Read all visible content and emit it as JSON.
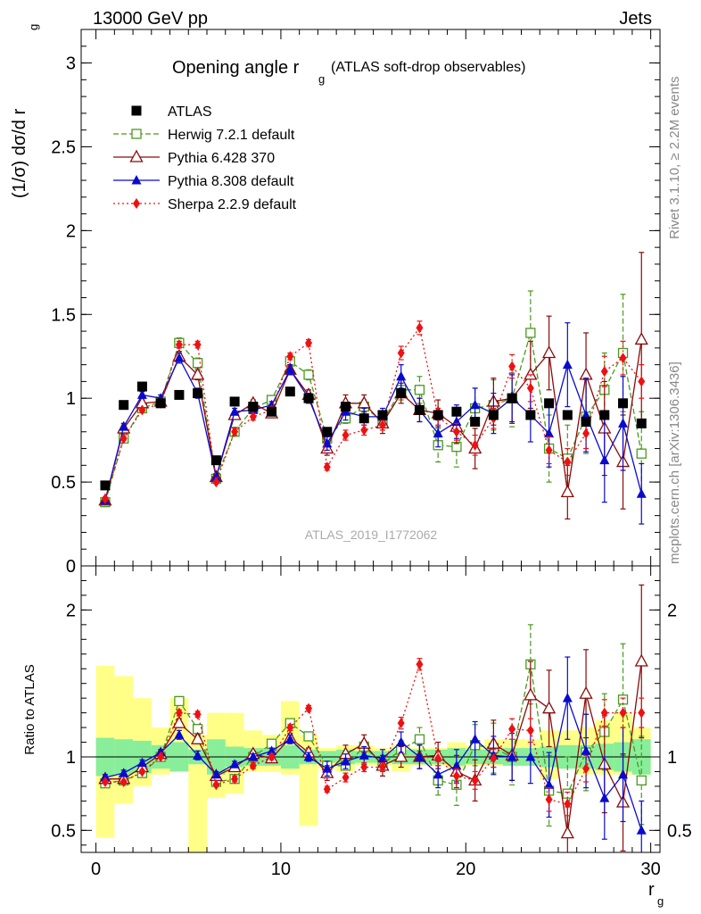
{
  "header": {
    "left": "13000 GeV pp",
    "right": "Jets",
    "watermark": "ATLAS_2019_I1772062",
    "side_top": "Rivet 3.1.10, ≥ 2.2M events",
    "side_bottom": "mcplots.cern.ch [arXiv:1306.3436]"
  },
  "chart_data": [
    {
      "type": "scatter",
      "title": "Opening angle r",
      "title_sub": "g",
      "title_tail": "(ATLAS soft-drop observables)",
      "ylabel": "(1/σ) dσ/d r",
      "ylabel_sub": "g",
      "xlim": [
        -0.8,
        30.5
      ],
      "ylim": [
        0,
        3.2
      ],
      "x_ticks": [
        0,
        10,
        20,
        30
      ],
      "y_ticks": [
        {
          "v": 0,
          "label": "0"
        },
        {
          "v": 0.5,
          "label": "0.5"
        },
        {
          "v": 1,
          "label": "1"
        },
        {
          "v": 1.5,
          "label": "1.5"
        },
        {
          "v": 2,
          "label": "2"
        },
        {
          "v": 2.5,
          "label": "2.5"
        },
        {
          "v": 3,
          "label": "3"
        }
      ],
      "legend_position": "top-left",
      "x": [
        0.5,
        1.5,
        2.5,
        3.5,
        4.5,
        5.5,
        6.5,
        7.5,
        8.5,
        9.5,
        10.5,
        11.5,
        12.5,
        13.5,
        14.5,
        15.5,
        16.5,
        17.5,
        18.5,
        19.5,
        20.5,
        21.5,
        22.5,
        23.5,
        24.5,
        25.5,
        26.5,
        27.5,
        28.5,
        29.5
      ],
      "series": [
        {
          "name": "ATLAS",
          "color": "#000000",
          "marker": "square-filled",
          "line": "none",
          "values": [
            0.48,
            0.96,
            1.07,
            0.97,
            1.02,
            1.03,
            0.63,
            0.98,
            0.95,
            0.92,
            1.04,
            1.0,
            0.8,
            0.95,
            0.88,
            0.9,
            1.03,
            0.93,
            0.9,
            0.92,
            0.86,
            0.9,
            1.0,
            0.9,
            0.97,
            0.9,
            0.86,
            0.9,
            0.97,
            0.85
          ]
        },
        {
          "name": "Herwig 7.2.1 default",
          "color": "#4a9a1e",
          "marker": "square-open",
          "line": "dashed",
          "values": [
            0.38,
            0.76,
            0.94,
            0.98,
            1.33,
            1.21,
            0.52,
            0.8,
            0.94,
            0.99,
            1.22,
            1.14,
            0.76,
            0.88,
            0.95,
            0.86,
            1.05,
            1.05,
            0.72,
            0.71,
            0.94,
            0.96,
            1.0,
            1.39,
            0.7,
            0.64,
            0.89,
            1.05,
            1.27,
            0.67
          ],
          "err": [
            0.02,
            0.02,
            0.02,
            0.02,
            0.03,
            0.03,
            0.02,
            0.02,
            0.02,
            0.02,
            0.03,
            0.03,
            0.03,
            0.03,
            0.04,
            0.05,
            0.06,
            0.08,
            0.1,
            0.12,
            0.12,
            0.15,
            0.17,
            0.25,
            0.2,
            0.2,
            0.22,
            0.22,
            0.35,
            0.25
          ]
        },
        {
          "name": "Pythia 6.428 370",
          "color": "#8b0a0a",
          "marker": "triangle-open",
          "line": "solid",
          "values": [
            0.39,
            0.82,
            0.97,
            0.98,
            1.25,
            1.14,
            0.53,
            0.9,
            0.97,
            0.91,
            1.17,
            1.02,
            0.7,
            0.97,
            0.97,
            0.85,
            1.03,
            0.93,
            0.91,
            0.83,
            0.7,
            0.98,
            1.0,
            1.14,
            1.27,
            0.44,
            1.14,
            0.82,
            0.62,
            1.35
          ],
          "err": [
            0.02,
            0.02,
            0.02,
            0.02,
            0.03,
            0.03,
            0.02,
            0.02,
            0.02,
            0.02,
            0.03,
            0.03,
            0.04,
            0.05,
            0.05,
            0.06,
            0.06,
            0.07,
            0.08,
            0.1,
            0.12,
            0.14,
            0.15,
            0.2,
            0.22,
            0.16,
            0.25,
            0.28,
            0.28,
            0.52
          ]
        },
        {
          "name": "Pythia 8.308 default",
          "color": "#0a0acd",
          "marker": "triangle-filled",
          "line": "solid",
          "values": [
            0.39,
            0.83,
            1.02,
            1.0,
            1.24,
            1.03,
            0.53,
            0.92,
            0.93,
            0.96,
            1.17,
            1.0,
            0.73,
            0.92,
            0.89,
            0.89,
            1.13,
            0.93,
            0.79,
            0.86,
            0.96,
            0.91,
            1.0,
            0.9,
            0.79,
            1.2,
            0.9,
            0.63,
            0.85,
            0.43
          ],
          "err": [
            0.02,
            0.02,
            0.02,
            0.02,
            0.03,
            0.03,
            0.02,
            0.02,
            0.02,
            0.02,
            0.03,
            0.03,
            0.04,
            0.05,
            0.05,
            0.05,
            0.07,
            0.07,
            0.08,
            0.1,
            0.1,
            0.12,
            0.14,
            0.16,
            0.2,
            0.25,
            0.22,
            0.25,
            0.28,
            0.18
          ]
        },
        {
          "name": "Sherpa 2.2.9 default",
          "color": "#ee1111",
          "marker": "diamond-filled",
          "line": "dotted",
          "values": [
            0.4,
            0.76,
            0.93,
            0.97,
            1.32,
            1.32,
            0.5,
            0.8,
            0.89,
            0.93,
            1.25,
            1.33,
            0.59,
            0.78,
            0.81,
            0.84,
            1.27,
            1.42,
            0.89,
            0.8,
            0.72,
            0.88,
            1.19,
            1.06,
            0.69,
            0.62,
            0.79,
            1.16,
            1.24,
            1.1
          ],
          "err": [
            0.01,
            0.01,
            0.01,
            0.01,
            0.02,
            0.02,
            0.01,
            0.02,
            0.02,
            0.02,
            0.02,
            0.02,
            0.02,
            0.03,
            0.03,
            0.03,
            0.04,
            0.04,
            0.05,
            0.05,
            0.06,
            0.06,
            0.07,
            0.08,
            0.08,
            0.08,
            0.09,
            0.09,
            0.1,
            0.1
          ]
        }
      ]
    },
    {
      "type": "scatter",
      "title": "",
      "ylabel": "Ratio to ATLAS",
      "xlabel": "r",
      "xlabel_sub": "g",
      "xlim": [
        -0.8,
        30.5
      ],
      "ylim": [
        0.35,
        2.3
      ],
      "x_ticks": [
        0,
        10,
        20,
        30
      ],
      "y_ticks": [
        {
          "v": 0.5,
          "label": "0.5"
        },
        {
          "v": 1,
          "label": "1"
        },
        {
          "v": 2,
          "label": "2"
        }
      ],
      "band_stat": [
        0.13,
        0.12,
        0.11,
        0.08,
        0.1,
        0.05,
        0.12,
        0.07,
        0.06,
        0.06,
        0.08,
        0.05,
        0.04,
        0.05,
        0.04,
        0.04,
        0.05,
        0.05,
        0.05,
        0.06,
        0.05,
        0.05,
        0.06,
        0.06,
        0.07,
        0.08,
        0.08,
        0.09,
        0.1,
        0.12
      ],
      "band_lo": [
        0.55,
        0.32,
        0.2,
        0.12,
        0.1,
        0.9,
        0.28,
        0.25,
        0.1,
        0.1,
        0.12,
        0.47,
        0.08,
        0.1,
        0.06,
        0.06,
        0.1,
        0.06,
        0.06,
        0.08,
        0.06,
        0.06,
        0.06,
        0.06,
        0.15,
        0.08,
        0.12,
        0.12,
        0.12,
        0.12
      ],
      "band_hi": [
        0.62,
        0.55,
        0.4,
        0.2,
        0.4,
        0.15,
        0.3,
        0.3,
        0.18,
        0.15,
        0.38,
        0.15,
        0.06,
        0.08,
        0.08,
        0.06,
        0.08,
        0.06,
        0.06,
        0.1,
        0.08,
        0.12,
        0.12,
        0.12,
        0.18,
        0.18,
        0.2,
        0.25,
        0.3,
        0.2
      ],
      "series": [
        {
          "name": "Herwig 7.2.1 default",
          "values": [
            0.82,
            0.84,
            0.89,
            1.0,
            1.38,
            1.19,
            0.83,
            0.85,
            1.0,
            1.09,
            1.23,
            1.14,
            0.94,
            0.94,
            1.07,
            0.95,
            1.05,
            1.12,
            0.84,
            0.81,
            1.08,
            1.06,
            1.0,
            1.63,
            0.77,
            0.75,
            1.03,
            1.17,
            1.39,
            0.84
          ],
          "err": [
            0.02,
            0.02,
            0.02,
            0.02,
            0.03,
            0.03,
            0.02,
            0.02,
            0.02,
            0.02,
            0.03,
            0.03,
            0.03,
            0.03,
            0.04,
            0.05,
            0.06,
            0.08,
            0.1,
            0.14,
            0.14,
            0.17,
            0.19,
            0.27,
            0.24,
            0.25,
            0.26,
            0.26,
            0.38,
            0.3
          ]
        },
        {
          "name": "Pythia 6.428 370",
          "values": [
            0.85,
            0.85,
            0.93,
            1.02,
            1.23,
            1.12,
            0.87,
            0.93,
            1.02,
            0.99,
            1.13,
            1.03,
            0.89,
            1.02,
            1.09,
            0.94,
            1.0,
            1.0,
            1.01,
            0.9,
            0.84,
            1.09,
            1.01,
            1.42,
            1.33,
            0.48,
            1.43,
            0.95,
            0.69,
            1.65
          ],
          "err": [
            0.02,
            0.02,
            0.02,
            0.02,
            0.03,
            0.03,
            0.02,
            0.02,
            0.02,
            0.02,
            0.03,
            0.03,
            0.05,
            0.06,
            0.06,
            0.07,
            0.07,
            0.08,
            0.09,
            0.11,
            0.14,
            0.16,
            0.17,
            0.23,
            0.26,
            0.18,
            0.3,
            0.33,
            0.33,
            0.52
          ]
        },
        {
          "name": "Pythia 8.308 default",
          "values": [
            0.86,
            0.89,
            0.96,
            1.03,
            1.15,
            1.01,
            0.88,
            0.95,
            1.0,
            1.04,
            1.12,
            1.0,
            0.92,
            0.97,
            1.01,
            0.99,
            1.1,
            1.0,
            0.88,
            0.94,
            1.12,
            1.01,
            1.0,
            1.0,
            0.81,
            1.4,
            1.04,
            0.72,
            0.88,
            0.5
          ],
          "err": [
            0.02,
            0.02,
            0.02,
            0.02,
            0.03,
            0.03,
            0.02,
            0.02,
            0.02,
            0.02,
            0.03,
            0.03,
            0.05,
            0.05,
            0.06,
            0.06,
            0.07,
            0.08,
            0.09,
            0.11,
            0.12,
            0.13,
            0.16,
            0.18,
            0.22,
            0.28,
            0.25,
            0.28,
            0.32,
            0.2
          ]
        },
        {
          "name": "Sherpa 2.2.9 default",
          "values": [
            0.83,
            0.83,
            0.9,
            1.0,
            1.3,
            1.29,
            0.81,
            0.85,
            0.94,
            1.0,
            1.2,
            1.33,
            0.78,
            0.86,
            0.93,
            0.93,
            1.23,
            1.63,
            0.99,
            0.87,
            0.84,
            0.99,
            1.19,
            1.18,
            0.71,
            0.68,
            0.92,
            1.3,
            1.3,
            1.3
          ],
          "err": [
            0.01,
            0.01,
            0.01,
            0.01,
            0.02,
            0.02,
            0.01,
            0.02,
            0.02,
            0.02,
            0.02,
            0.02,
            0.02,
            0.03,
            0.03,
            0.03,
            0.04,
            0.04,
            0.05,
            0.05,
            0.06,
            0.06,
            0.07,
            0.08,
            0.08,
            0.08,
            0.09,
            0.09,
            0.1,
            0.1
          ]
        }
      ]
    }
  ]
}
